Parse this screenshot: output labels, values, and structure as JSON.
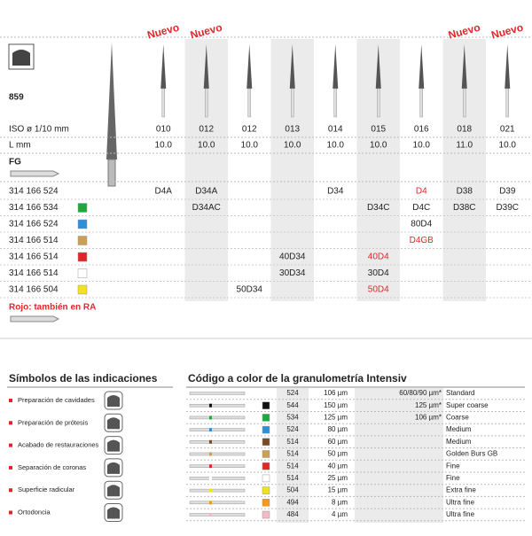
{
  "product": {
    "code": "859",
    "row_labels": {
      "iso": "ISO ø 1/10 mm",
      "length": "L mm",
      "shank": "FG"
    },
    "columns": [
      {
        "iso": "010",
        "length": "10.0",
        "badge": "Nuevo"
      },
      {
        "iso": "012",
        "length": "10.0",
        "badge": "Nuevo"
      },
      {
        "iso": "012",
        "length": "10.0"
      },
      {
        "iso": "013",
        "length": "10.0"
      },
      {
        "iso": "014",
        "length": "10.0"
      },
      {
        "iso": "015",
        "length": "10.0"
      },
      {
        "iso": "016",
        "length": "10.0"
      },
      {
        "iso": "018",
        "length": "11.0",
        "badge": "Nuevo"
      },
      {
        "iso": "021",
        "length": "10.0",
        "badge": "Nuevo"
      }
    ],
    "rows": [
      {
        "ref": "314 166 524",
        "cells": [
          "D4A",
          "D34A",
          null,
          null,
          "D34",
          null,
          "D4",
          "D38",
          "D39"
        ],
        "red_cells": [
          6
        ]
      },
      {
        "ref": "314 166 534",
        "color": "#1fa83c",
        "cells": [
          null,
          "D34AC",
          null,
          null,
          null,
          "D34C",
          "D4C",
          "D38C",
          "D39C"
        ]
      },
      {
        "ref": "314 166 524",
        "color": "#2f8fd6",
        "cells": [
          null,
          null,
          null,
          null,
          null,
          null,
          "80D4",
          null,
          null
        ]
      },
      {
        "ref": "314 166 514",
        "color": "#c9a054",
        "cells": [
          null,
          null,
          null,
          null,
          null,
          null,
          "D4GB",
          null,
          null
        ],
        "red_cells": [
          6
        ]
      },
      {
        "ref": "314 166 514",
        "color": "#e0262b",
        "cells": [
          null,
          null,
          null,
          "40D34",
          null,
          "40D4",
          null,
          null,
          null
        ],
        "red_cells": [
          5
        ]
      },
      {
        "ref": "314 166 514",
        "color": "#ffffff",
        "cells": [
          null,
          null,
          null,
          "30D34",
          null,
          "30D4",
          null,
          null,
          null
        ]
      },
      {
        "ref": "314 166 504",
        "color": "#f2e21a",
        "cells": [
          null,
          null,
          "50D34",
          null,
          null,
          "50D4",
          null,
          null,
          null
        ],
        "red_cells": [
          5
        ]
      }
    ],
    "note": "Rojo: también en RA"
  },
  "indications": {
    "title": "Símbolos de las indicaciones",
    "items": [
      "Preparación de cavidades",
      "Preparación de prótesis",
      "Acabado de restauraciones",
      "Separación de coronas",
      "Superficie radicular",
      "Ortodoncia"
    ]
  },
  "grit": {
    "title": "Código a color de la granulometría Intensiv",
    "rows": [
      {
        "ref": "524",
        "size": "106 µm",
        "note": "60/80/90 µm*",
        "label": "Standard"
      },
      {
        "ref": "544",
        "size": "150 µm",
        "note": "125 µm*",
        "label": "Super coarse",
        "color": "#111111"
      },
      {
        "ref": "534",
        "size": "125 µm",
        "note": "106 µm*",
        "label": "Coarse",
        "color": "#1fa83c"
      },
      {
        "ref": "524",
        "size": "80 µm",
        "label": "Medium",
        "color": "#2f8fd6"
      },
      {
        "ref": "514",
        "size": "60 µm",
        "label": "Medium",
        "color": "#7a4a25"
      },
      {
        "ref": "514",
        "size": "50 µm",
        "label": "Golden Burs GB",
        "color": "#c9a054"
      },
      {
        "ref": "514",
        "size": "40 µm",
        "label": "Fine",
        "color": "#e0262b"
      },
      {
        "ref": "514",
        "size": "25 µm",
        "label": "Fine",
        "color": "#ffffff"
      },
      {
        "ref": "504",
        "size": "15 µm",
        "label": "Extra fine",
        "color": "#f2e21a"
      },
      {
        "ref": "494",
        "size": "8 µm",
        "label": "Ultra fine",
        "color": "#f29a1e"
      },
      {
        "ref": "484",
        "size": "4 µm",
        "label": "Ultra fine",
        "color": "#f5b8c8"
      }
    ]
  }
}
